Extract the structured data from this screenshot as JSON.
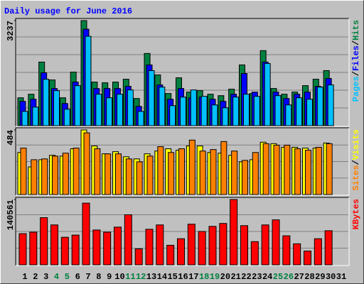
{
  "chart_data": [
    {
      "type": "bar",
      "title": "Daily usage for June 2016",
      "legend_separator": "/",
      "ylim": [
        0,
        3237
      ],
      "yticks": [
        3237
      ],
      "series": [
        {
          "name": "Hits",
          "color": "#008040",
          "values": [
            859,
            969,
            1960,
            1409,
            859,
            1651,
            3237,
            1343,
            1321,
            1343,
            1431,
            837,
            2224,
            1563,
            991,
            1475,
            1035,
            1079,
            969,
            925,
            1123,
            1872,
            991,
            2312,
            1145,
            969,
            1035,
            1233,
            1431,
            1696,
            null
          ]
        },
        {
          "name": "Files",
          "color": "#0000ff",
          "values": [
            749,
            815,
            1630,
            1145,
            683,
            1343,
            2973,
            1145,
            1145,
            1145,
            1211,
            595,
            1872,
            1255,
            815,
            1145,
            859,
            881,
            815,
            749,
            969,
            1607,
            1035,
            1960,
            1035,
            837,
            969,
            1035,
            1211,
            1453,
            null
          ]
        },
        {
          "name": "Pages",
          "color": "#00c0ff",
          "values": [
            440,
            573,
            1431,
            1079,
            507,
            1233,
            2753,
            969,
            859,
            969,
            1101,
            440,
            1696,
            1189,
            617,
            881,
            1101,
            903,
            639,
            551,
            881,
            969,
            903,
            1916,
            925,
            639,
            859,
            815,
            1189,
            1255,
            null
          ]
        }
      ]
    },
    {
      "type": "bar",
      "legend_separator": "/",
      "ylim": [
        0,
        484
      ],
      "yticks": [
        484
      ],
      "series": [
        {
          "name": "Visits",
          "color": "#ffff00",
          "values": [
            315,
            207,
            261,
            294,
            288,
            343,
            484,
            364,
            305,
            321,
            283,
            267,
            305,
            326,
            343,
            332,
            364,
            364,
            315,
            310,
            294,
            245,
            261,
            392,
            381,
            354,
            354,
            348,
            348,
            386,
            null
          ]
        },
        {
          "name": "Sites",
          "color": "#ff8000",
          "values": [
            348,
            261,
            267,
            288,
            310,
            348,
            462,
            343,
            305,
            305,
            267,
            245,
            288,
            359,
            315,
            343,
            408,
            326,
            337,
            397,
            326,
            256,
            315,
            381,
            370,
            370,
            343,
            332,
            354,
            381,
            null
          ]
        }
      ]
    },
    {
      "type": "bar",
      "ylim": [
        0,
        140561
      ],
      "yticks": [
        140561
      ],
      "categories": [
        "1",
        "2",
        "3",
        "4",
        "5",
        "6",
        "7",
        "8",
        "9",
        "10",
        "11",
        "12",
        "13",
        "14",
        "15",
        "16",
        "17",
        "18",
        "19",
        "20",
        "21",
        "22",
        "23",
        "24",
        "25",
        "26",
        "27",
        "28",
        "29",
        "30",
        "31"
      ],
      "category_colors": [
        "#000000",
        "#000000",
        "#000000",
        "#008040",
        "#008040",
        "#000000",
        "#000000",
        "#000000",
        "#000000",
        "#000000",
        "#008040",
        "#008040",
        "#000000",
        "#000000",
        "#000000",
        "#000000",
        "#000000",
        "#008040",
        "#008040",
        "#000000",
        "#000000",
        "#000000",
        "#000000",
        "#000000",
        "#008040",
        "#008040",
        "#000000",
        "#000000",
        "#000000",
        "#000000",
        "#000000"
      ],
      "series": [
        {
          "name": "KBytes",
          "color": "#ff0000",
          "values": [
            67165,
            70281,
            101516,
            85898,
            59349,
            64035,
            132752,
            74966,
            70281,
            81213,
            107764,
            34360,
            76528,
            85898,
            42168,
            56224,
            87459,
            71843,
            82775,
            89021,
            140561,
            84337,
            49977,
            85898,
            96831,
            62471,
            45292,
            29674,
            56224,
            73404,
            null
          ]
        }
      ]
    }
  ]
}
